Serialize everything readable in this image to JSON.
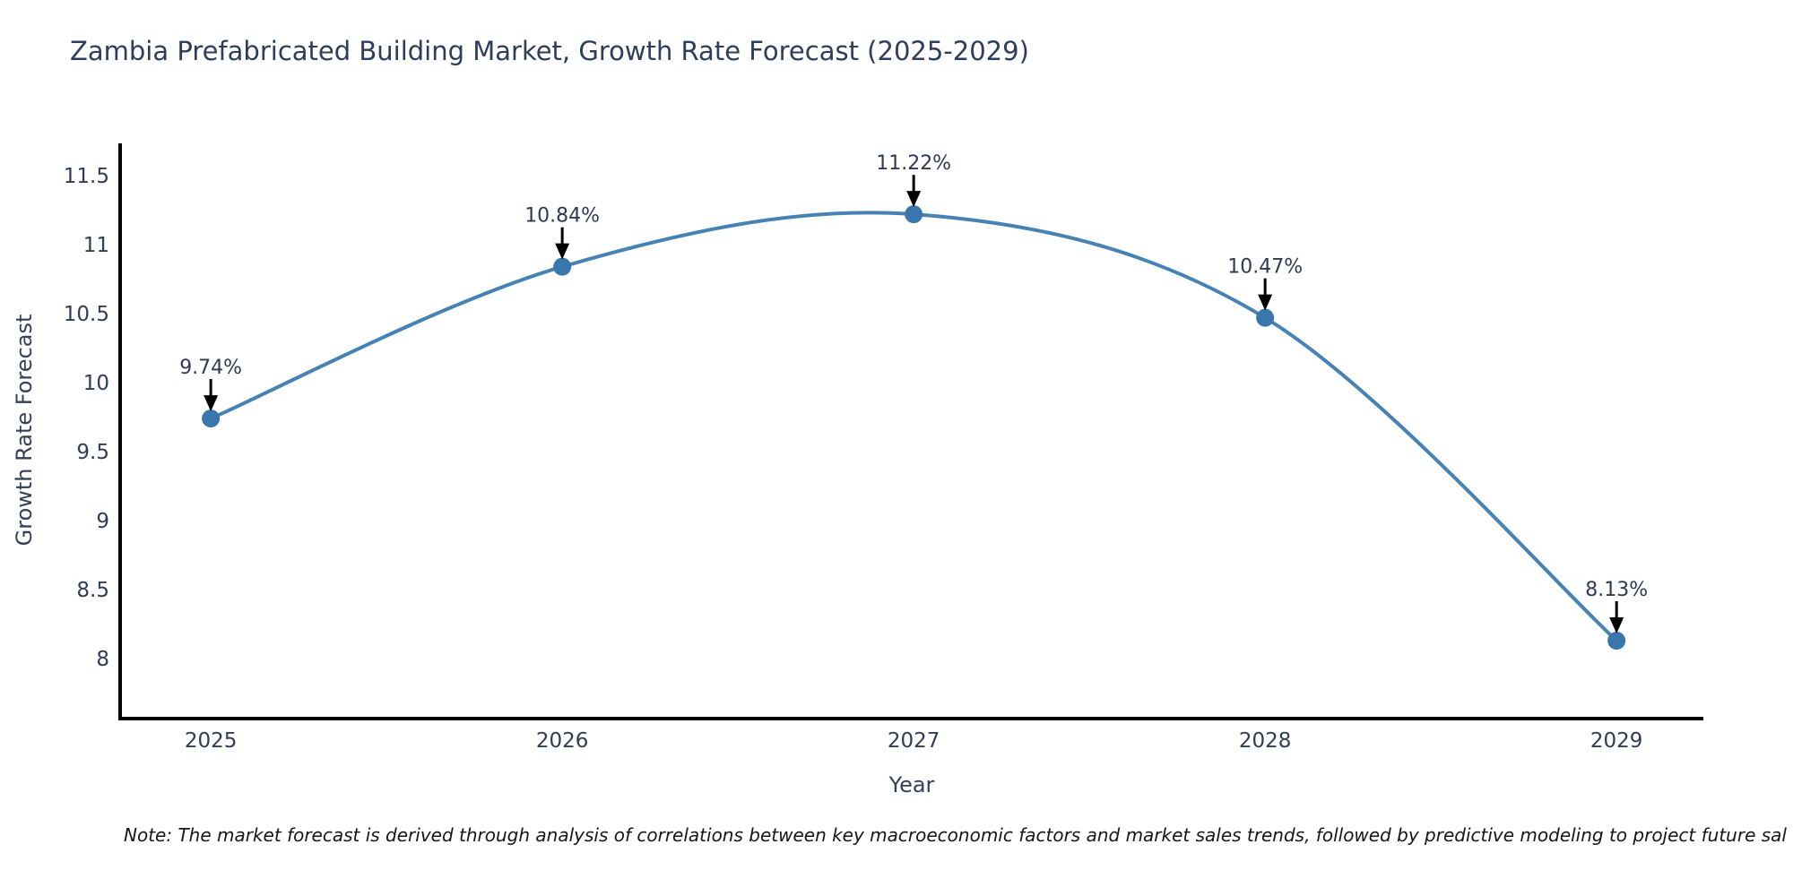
{
  "chart_data": {
    "type": "line",
    "title": "Zambia Prefabricated Building Market, Growth Rate Forecast (2025-2029)",
    "xlabel": "Year",
    "ylabel": "Growth Rate Forecast",
    "x": [
      2025,
      2026,
      2027,
      2028,
      2029
    ],
    "values": [
      9.74,
      10.84,
      11.22,
      10.47,
      8.13
    ],
    "point_labels": [
      "9.74%",
      "10.84%",
      "11.22%",
      "10.47%",
      "8.13%"
    ],
    "xtick_labels": [
      "2025",
      "2026",
      "2027",
      "2028",
      "2029"
    ],
    "ytick_values": [
      8,
      8.5,
      9,
      9.5,
      10,
      10.5,
      11,
      11.5
    ],
    "ytick_labels": [
      "8",
      "8.5",
      "9",
      "9.5",
      "10",
      "10.5",
      "11",
      "11.5"
    ],
    "xlim": [
      2024.742,
      2029.247
    ],
    "ylim": [
      7.565,
      11.734
    ],
    "grid": false,
    "legend": "none",
    "smooth": true,
    "colors": {
      "line": "#4682b4",
      "marker": "#3a76ae",
      "axis": "#000000",
      "arrow": "#000000",
      "tick_text": "#313d55",
      "annotation_text": "#2e3a52"
    }
  },
  "footer": {
    "note": "Note: The market forecast is derived through analysis of correlations between key macroeconomic factors and market sales trends, followed by predictive modeling to project future sal"
  }
}
